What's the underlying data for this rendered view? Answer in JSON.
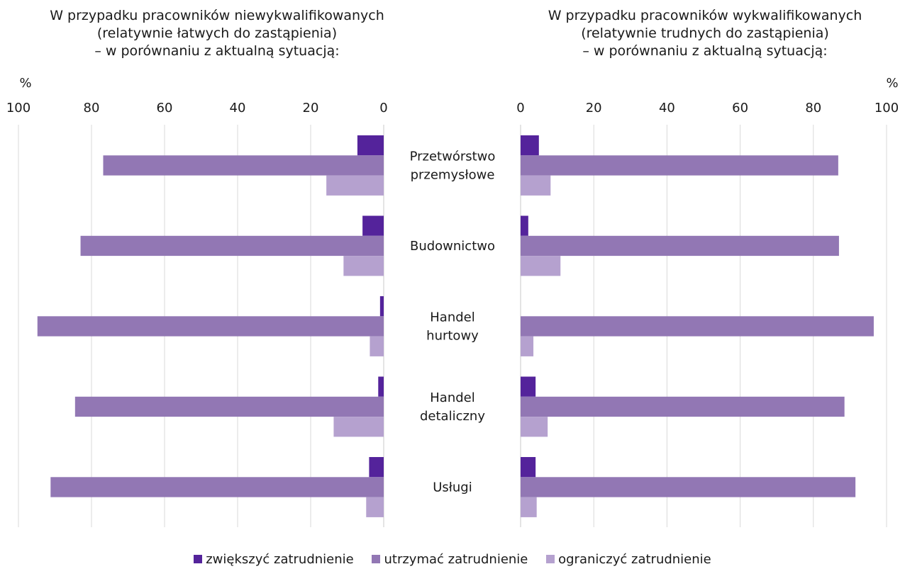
{
  "chart_data": {
    "type": "bar",
    "unit": "%",
    "categories": [
      "Przetwórstwo przemysłowe",
      "Budownictwo",
      "Handel hurtowy",
      "Handel detaliczny",
      "Usługi"
    ],
    "category_lines": [
      [
        "Przetwórstwo",
        "przemysłowe"
      ],
      [
        "Budownictwo"
      ],
      [
        "Handel",
        "hurtowy"
      ],
      [
        "Handel",
        "detaliczny"
      ],
      [
        "Usługi"
      ]
    ],
    "series_names": [
      "zwiększyć zatrudnienie",
      "utrzymać zatrudnienie",
      "ograniczyć zatrudnienie"
    ],
    "colors": [
      "#54239b",
      "#9277b4",
      "#b5a1cf"
    ],
    "grid": true,
    "legend_position": "bottom",
    "panels": [
      {
        "title_lines": [
          "W przypadku pracowników niewykwalifikowanych",
          "(relatywnie łatwych do zastąpienia)",
          "– w porównaniu z aktualną sytuacją:"
        ],
        "ylabel": "%",
        "xlim": [
          100,
          0
        ],
        "ticks": [
          100,
          80,
          60,
          40,
          20,
          0
        ],
        "series": [
          {
            "name": "zwiększyć zatrudnienie",
            "values": [
              7.2,
              5.8,
              1.0,
              1.5,
              4.0
            ]
          },
          {
            "name": "utrzymać zatrudnienie",
            "values": [
              76.8,
              83.0,
              94.8,
              84.5,
              91.2
            ]
          },
          {
            "name": "ograniczyć zatrudnienie",
            "values": [
              15.7,
              11.0,
              3.8,
              13.7,
              4.8
            ]
          }
        ]
      },
      {
        "title_lines": [
          "W przypadku pracowników wykwalifikowanych",
          "(relatywnie trudnych do zastąpienia)",
          "– w porównaniu z aktualną sytuacją:"
        ],
        "ylabel": "%",
        "xlim": [
          0,
          100
        ],
        "ticks": [
          0,
          20,
          40,
          60,
          80,
          100
        ],
        "series": [
          {
            "name": "zwiększyć zatrudnienie",
            "values": [
              5.0,
              2.1,
              0,
              4.1,
              4.1
            ]
          },
          {
            "name": "utrzymać zatrudnienie",
            "values": [
              86.8,
              87.0,
              96.5,
              88.5,
              91.5
            ]
          },
          {
            "name": "ograniczyć zatrudnienie",
            "values": [
              8.2,
              10.9,
              3.5,
              7.4,
              4.4
            ]
          }
        ]
      }
    ]
  }
}
